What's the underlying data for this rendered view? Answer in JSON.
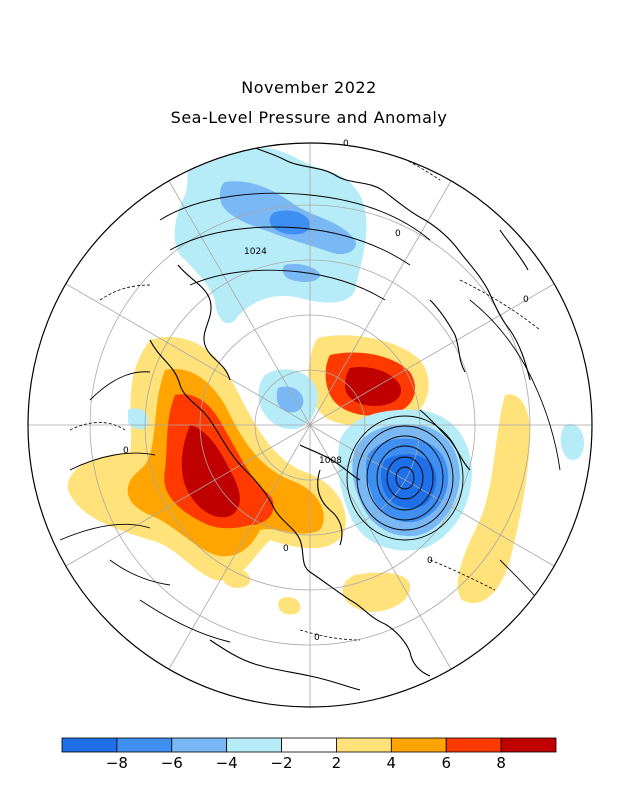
{
  "title": {
    "line1": "November 2022",
    "line2": "Sea-Level Pressure and Anomaly"
  },
  "contour_labels": [
    "1024",
    "1008",
    "0",
    "0",
    "0",
    "0",
    "0",
    "0",
    "0"
  ],
  "colorbar": {
    "ticks": [
      "−8",
      "−6",
      "−4",
      "−2",
      "2",
      "4",
      "6",
      "8"
    ],
    "colors": [
      "#1f6fe8",
      "#3f8ff2",
      "#7ab8f5",
      "#b6ecf8",
      "#ffffff",
      "#ffe27a",
      "#ffa400",
      "#ff3a00",
      "#c00000"
    ]
  },
  "palette": {
    "dark_red": "#c00000",
    "red": "#ff3a00",
    "orange": "#ffa400",
    "yellow": "#ffe27a",
    "light_blue": "#b6ecf8",
    "mid_blue": "#7ab8f5",
    "blue": "#3f8ff2",
    "dark_blue": "#1f6fe8"
  }
}
